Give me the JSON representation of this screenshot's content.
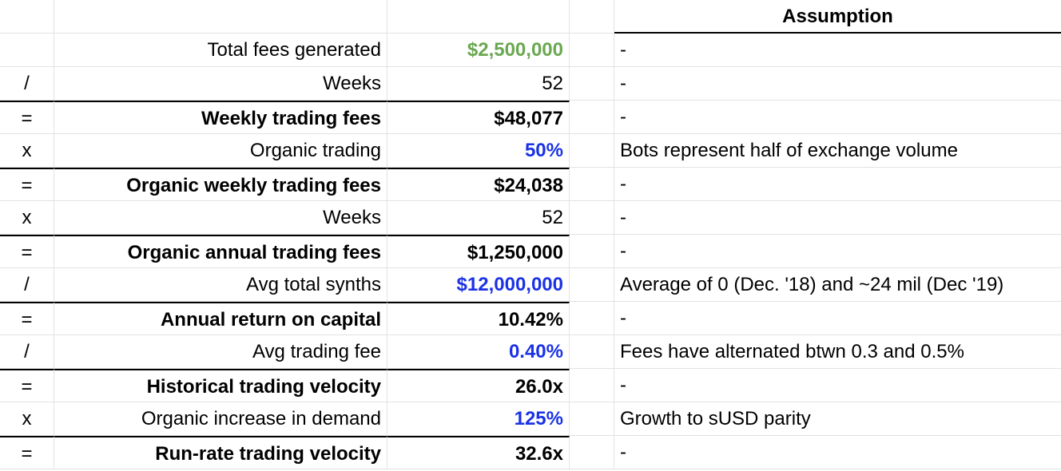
{
  "header": {
    "assumption_label": "Assumption"
  },
  "colors": {
    "green": "#6aa84f",
    "blue": "#1a32e6",
    "black": "#000000"
  },
  "rows": [
    {
      "op": "",
      "label": "Total fees generated",
      "value": "$2,500,000",
      "value_color": "green",
      "bold": false,
      "assumption": "-"
    },
    {
      "op": "/",
      "label": "Weeks",
      "value": "52",
      "value_color": "black",
      "bold": false,
      "assumption": "-"
    },
    {
      "op": "=",
      "label": "Weekly trading fees",
      "value": "$48,077",
      "value_color": "black",
      "bold": true,
      "assumption": "-"
    },
    {
      "op": "x",
      "label": "Organic trading",
      "value": "50%",
      "value_color": "blue",
      "bold": false,
      "assumption": "Bots represent half of exchange volume"
    },
    {
      "op": "=",
      "label": "Organic weekly trading fees",
      "value": "$24,038",
      "value_color": "black",
      "bold": true,
      "assumption": "-"
    },
    {
      "op": "x",
      "label": "Weeks",
      "value": "52",
      "value_color": "black",
      "bold": false,
      "assumption": "-"
    },
    {
      "op": "=",
      "label": "Organic annual trading fees",
      "value": "$1,250,000",
      "value_color": "black",
      "bold": true,
      "assumption": "-"
    },
    {
      "op": "/",
      "label": "Avg total synths",
      "value": "$12,000,000",
      "value_color": "blue",
      "bold": false,
      "assumption": "Average of 0 (Dec. '18) and ~24 mil (Dec '19)"
    },
    {
      "op": "=",
      "label": "Annual return on capital",
      "value": "10.42%",
      "value_color": "black",
      "bold": true,
      "assumption": "-"
    },
    {
      "op": "/",
      "label": "Avg trading fee",
      "value": "0.40%",
      "value_color": "blue",
      "bold": false,
      "assumption": "Fees have alternated btwn 0.3 and 0.5%"
    },
    {
      "op": "=",
      "label": "Historical trading velocity",
      "value": "26.0x",
      "value_color": "black",
      "bold": true,
      "assumption": "-"
    },
    {
      "op": "x",
      "label": "Organic increase in demand",
      "value": "125%",
      "value_color": "blue",
      "bold": false,
      "assumption": "Growth to sUSD parity"
    },
    {
      "op": "=",
      "label": "Run-rate trading velocity",
      "value": "32.6x",
      "value_color": "black",
      "bold": true,
      "assumption": "-"
    }
  ]
}
